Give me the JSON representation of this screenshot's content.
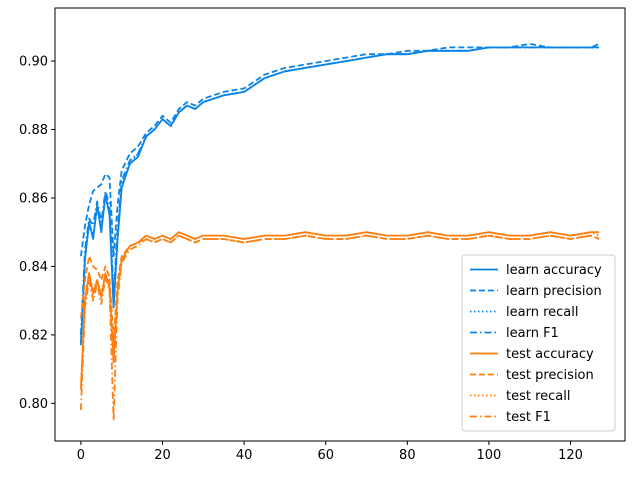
{
  "chart_data": {
    "type": "line",
    "title": "",
    "xlabel": "",
    "ylabel": "",
    "xlim": [
      -6.35,
      133.35
    ],
    "ylim": [
      0.789,
      0.9155
    ],
    "xticks": [
      0,
      20,
      40,
      60,
      80,
      100,
      120
    ],
    "xtick_labels": [
      "0",
      "20",
      "40",
      "60",
      "80",
      "100",
      "120"
    ],
    "yticks": [
      0.8,
      0.82,
      0.84,
      0.86,
      0.88,
      0.9
    ],
    "ytick_labels": [
      "0.80",
      "0.82",
      "0.84",
      "0.86",
      "0.88",
      "0.90"
    ],
    "grid": false,
    "legend_placement": "lower-right",
    "colors": {
      "learn": "#0a84e8",
      "test": "#ff7f0e"
    },
    "series": [
      {
        "name": "learn accuracy",
        "color": "#0a84e8",
        "style": "solid",
        "x": [
          0,
          1,
          2,
          3,
          4,
          5,
          6,
          7,
          8,
          9,
          10,
          12,
          14,
          16,
          18,
          20,
          22,
          24,
          26,
          28,
          30,
          35,
          40,
          45,
          50,
          55,
          60,
          65,
          70,
          75,
          80,
          85,
          90,
          95,
          100,
          105,
          110,
          115,
          120,
          125,
          127
        ],
        "y": [
          0.817,
          0.842,
          0.853,
          0.848,
          0.858,
          0.85,
          0.861,
          0.855,
          0.828,
          0.848,
          0.863,
          0.87,
          0.872,
          0.878,
          0.88,
          0.883,
          0.881,
          0.885,
          0.887,
          0.886,
          0.888,
          0.89,
          0.891,
          0.895,
          0.897,
          0.898,
          0.899,
          0.9,
          0.901,
          0.902,
          0.902,
          0.903,
          0.903,
          0.903,
          0.904,
          0.904,
          0.904,
          0.904,
          0.904,
          0.904,
          0.904
        ]
      },
      {
        "name": "learn precision",
        "color": "#0a84e8",
        "style": "dashed",
        "x": [
          0,
          1,
          2,
          3,
          4,
          5,
          6,
          7,
          8,
          9,
          10,
          12,
          14,
          16,
          18,
          20,
          22,
          24,
          26,
          28,
          30,
          35,
          40,
          45,
          50,
          55,
          60,
          65,
          70,
          75,
          80,
          85,
          90,
          95,
          100,
          105,
          110,
          115,
          120,
          125,
          127
        ],
        "y": [
          0.843,
          0.852,
          0.858,
          0.862,
          0.863,
          0.864,
          0.867,
          0.866,
          0.843,
          0.858,
          0.868,
          0.873,
          0.875,
          0.879,
          0.881,
          0.884,
          0.882,
          0.886,
          0.888,
          0.887,
          0.889,
          0.891,
          0.892,
          0.896,
          0.898,
          0.899,
          0.9,
          0.901,
          0.902,
          0.902,
          0.903,
          0.903,
          0.904,
          0.904,
          0.904,
          0.904,
          0.905,
          0.904,
          0.904,
          0.904,
          0.905
        ]
      },
      {
        "name": "learn recall",
        "color": "#0a84e8",
        "style": "dotted",
        "x": [
          0,
          1,
          2,
          3,
          4,
          5,
          6,
          7,
          8,
          9,
          10,
          12,
          14,
          16,
          18,
          20,
          22,
          24,
          26,
          28,
          30,
          35,
          40,
          45,
          50,
          55,
          60,
          65,
          70,
          75,
          80,
          85,
          90,
          95,
          100,
          105,
          110,
          115,
          120,
          125,
          127
        ],
        "y": [
          0.818,
          0.843,
          0.852,
          0.849,
          0.857,
          0.851,
          0.86,
          0.856,
          0.83,
          0.849,
          0.864,
          0.87,
          0.873,
          0.878,
          0.88,
          0.883,
          0.881,
          0.885,
          0.887,
          0.886,
          0.888,
          0.89,
          0.891,
          0.895,
          0.897,
          0.898,
          0.899,
          0.9,
          0.901,
          0.902,
          0.902,
          0.903,
          0.903,
          0.903,
          0.904,
          0.904,
          0.904,
          0.904,
          0.904,
          0.904,
          0.904
        ]
      },
      {
        "name": "learn F1",
        "color": "#0a84e8",
        "style": "dashdot",
        "x": [
          0,
          1,
          2,
          3,
          4,
          5,
          6,
          7,
          8,
          9,
          10,
          12,
          14,
          16,
          18,
          20,
          22,
          24,
          26,
          28,
          30,
          35,
          40,
          45,
          50,
          55,
          60,
          65,
          70,
          75,
          80,
          85,
          90,
          95,
          100,
          105,
          110,
          115,
          120,
          125,
          127
        ],
        "y": [
          0.82,
          0.845,
          0.854,
          0.852,
          0.859,
          0.853,
          0.862,
          0.858,
          0.832,
          0.851,
          0.865,
          0.871,
          0.873,
          0.878,
          0.88,
          0.883,
          0.881,
          0.885,
          0.887,
          0.886,
          0.888,
          0.89,
          0.891,
          0.895,
          0.897,
          0.898,
          0.899,
          0.9,
          0.901,
          0.902,
          0.902,
          0.903,
          0.903,
          0.903,
          0.904,
          0.904,
          0.904,
          0.904,
          0.904,
          0.904,
          0.904
        ]
      },
      {
        "name": "test accuracy",
        "color": "#ff7f0e",
        "style": "solid",
        "x": [
          0,
          1,
          2,
          3,
          4,
          5,
          6,
          7,
          8,
          9,
          10,
          12,
          14,
          16,
          18,
          20,
          22,
          24,
          26,
          28,
          30,
          35,
          40,
          45,
          50,
          55,
          60,
          65,
          70,
          75,
          80,
          85,
          90,
          95,
          100,
          105,
          110,
          115,
          120,
          125,
          127
        ],
        "y": [
          0.804,
          0.83,
          0.838,
          0.832,
          0.836,
          0.831,
          0.838,
          0.834,
          0.812,
          0.833,
          0.842,
          0.846,
          0.847,
          0.849,
          0.848,
          0.849,
          0.848,
          0.85,
          0.849,
          0.848,
          0.849,
          0.849,
          0.848,
          0.849,
          0.849,
          0.85,
          0.849,
          0.849,
          0.85,
          0.849,
          0.849,
          0.85,
          0.849,
          0.849,
          0.85,
          0.849,
          0.849,
          0.85,
          0.849,
          0.85,
          0.85
        ]
      },
      {
        "name": "test precision",
        "color": "#ff7f0e",
        "style": "dashed",
        "x": [
          0,
          1,
          2,
          3,
          4,
          5,
          6,
          7,
          8,
          9,
          10,
          12,
          14,
          16,
          18,
          20,
          22,
          24,
          26,
          28,
          30,
          35,
          40,
          45,
          50,
          55,
          60,
          65,
          70,
          75,
          80,
          85,
          90,
          95,
          100,
          105,
          110,
          115,
          120,
          125,
          127
        ],
        "y": [
          0.825,
          0.836,
          0.843,
          0.84,
          0.839,
          0.836,
          0.84,
          0.837,
          0.818,
          0.836,
          0.843,
          0.846,
          0.847,
          0.848,
          0.847,
          0.848,
          0.847,
          0.849,
          0.848,
          0.847,
          0.848,
          0.848,
          0.847,
          0.848,
          0.848,
          0.849,
          0.848,
          0.848,
          0.849,
          0.848,
          0.848,
          0.849,
          0.848,
          0.848,
          0.849,
          0.848,
          0.848,
          0.849,
          0.848,
          0.849,
          0.848
        ]
      },
      {
        "name": "test recall",
        "color": "#ff7f0e",
        "style": "dotted",
        "x": [
          0,
          1,
          2,
          3,
          4,
          5,
          6,
          7,
          8,
          9,
          10,
          12,
          14,
          16,
          18,
          20,
          22,
          24,
          26,
          28,
          30,
          35,
          40,
          45,
          50,
          55,
          60,
          65,
          70,
          75,
          80,
          85,
          90,
          95,
          100,
          105,
          110,
          115,
          120,
          125,
          127
        ],
        "y": [
          0.805,
          0.831,
          0.838,
          0.833,
          0.836,
          0.832,
          0.838,
          0.835,
          0.813,
          0.833,
          0.842,
          0.846,
          0.847,
          0.849,
          0.848,
          0.849,
          0.848,
          0.85,
          0.849,
          0.848,
          0.849,
          0.849,
          0.848,
          0.849,
          0.849,
          0.85,
          0.849,
          0.849,
          0.85,
          0.849,
          0.849,
          0.85,
          0.849,
          0.849,
          0.85,
          0.849,
          0.849,
          0.85,
          0.849,
          0.85,
          0.849
        ]
      },
      {
        "name": "test F1",
        "color": "#ff7f0e",
        "style": "dashdot",
        "x": [
          0,
          1,
          2,
          3,
          4,
          5,
          6,
          7,
          8,
          9,
          10,
          12,
          14,
          16,
          18,
          20,
          22,
          24,
          26,
          28,
          30,
          35,
          40,
          45,
          50,
          55,
          60,
          65,
          70,
          75,
          80,
          85,
          90,
          95,
          100,
          105,
          110,
          115,
          120,
          125,
          127
        ],
        "y": [
          0.798,
          0.828,
          0.836,
          0.83,
          0.835,
          0.829,
          0.837,
          0.833,
          0.795,
          0.831,
          0.841,
          0.845,
          0.846,
          0.848,
          0.847,
          0.848,
          0.847,
          0.849,
          0.848,
          0.847,
          0.848,
          0.848,
          0.847,
          0.848,
          0.848,
          0.849,
          0.848,
          0.848,
          0.849,
          0.848,
          0.848,
          0.849,
          0.848,
          0.848,
          0.849,
          0.848,
          0.848,
          0.849,
          0.848,
          0.849,
          0.848
        ]
      }
    ]
  }
}
